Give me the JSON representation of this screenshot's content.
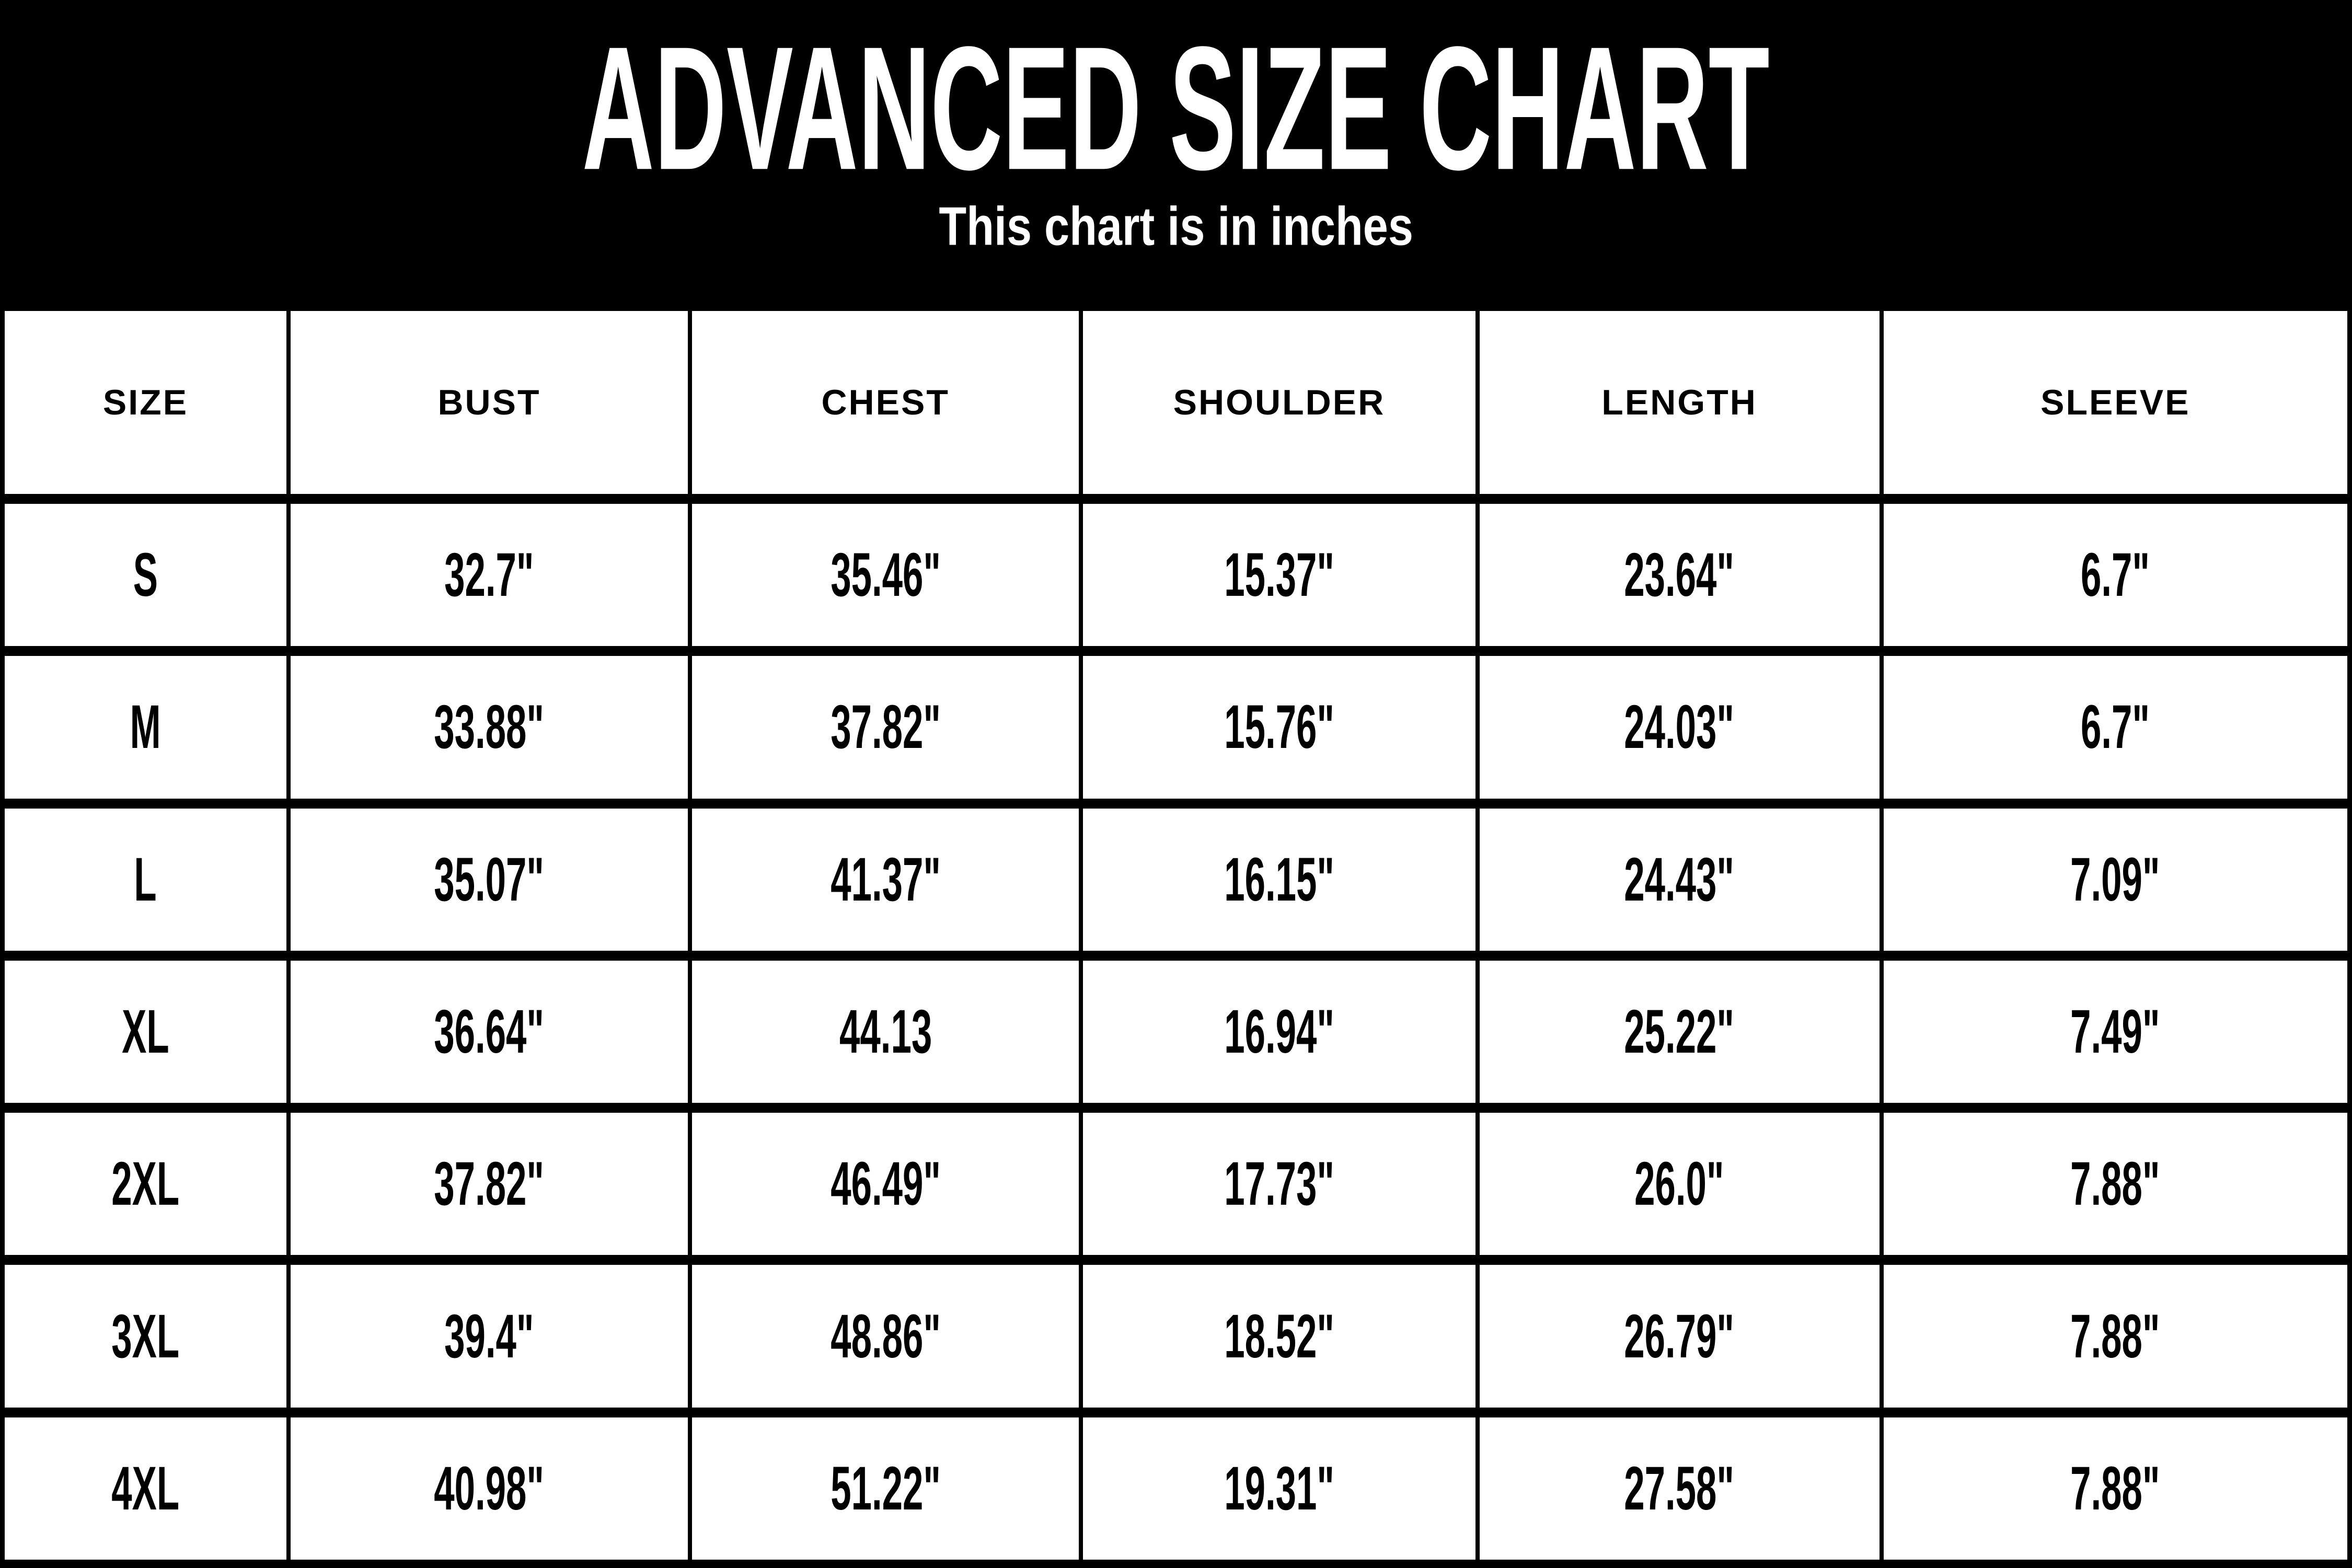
{
  "header": {
    "title": "ADVANCED SIZE CHART",
    "subtitle": "This chart is in inches"
  },
  "chart_data": {
    "type": "table",
    "title": "ADVANCED SIZE CHART",
    "subtitle": "This chart is in inches",
    "unit": "inches",
    "columns": [
      "SIZE",
      "BUST",
      "CHEST",
      "SHOULDER",
      "LENGTH",
      "SLEEVE"
    ],
    "rows": [
      [
        "S",
        "32.7\"",
        "35.46\"",
        "15.37\"",
        "23.64\"",
        "6.7\""
      ],
      [
        "M",
        "33.88\"",
        "37.82\"",
        "15.76\"",
        "24.03\"",
        "6.7\""
      ],
      [
        "L",
        "35.07\"",
        "41.37\"",
        "16.15\"",
        "24.43\"",
        "7.09\""
      ],
      [
        "XL",
        "36.64\"",
        "44.13",
        "16.94\"",
        "25.22\"",
        "7.49\""
      ],
      [
        "2XL",
        "37.82\"",
        "46.49\"",
        "17.73\"",
        "26.0\"",
        "7.88\""
      ],
      [
        "3XL",
        "39.4\"",
        "48.86\"",
        "18.52\"",
        "26.79\"",
        "7.88\""
      ],
      [
        "4XL",
        "40.98\"",
        "51.22\"",
        "19.31\"",
        "27.58\"",
        "7.88\""
      ]
    ],
    "colors": {
      "page_background": "#000000",
      "cell_background": "#ffffff",
      "cell_text": "#000000",
      "header_text": "#ffffff",
      "grid_lines": "#000000"
    },
    "layout": {
      "grid": "on",
      "header_row": true,
      "first_column_is_size": true
    }
  }
}
